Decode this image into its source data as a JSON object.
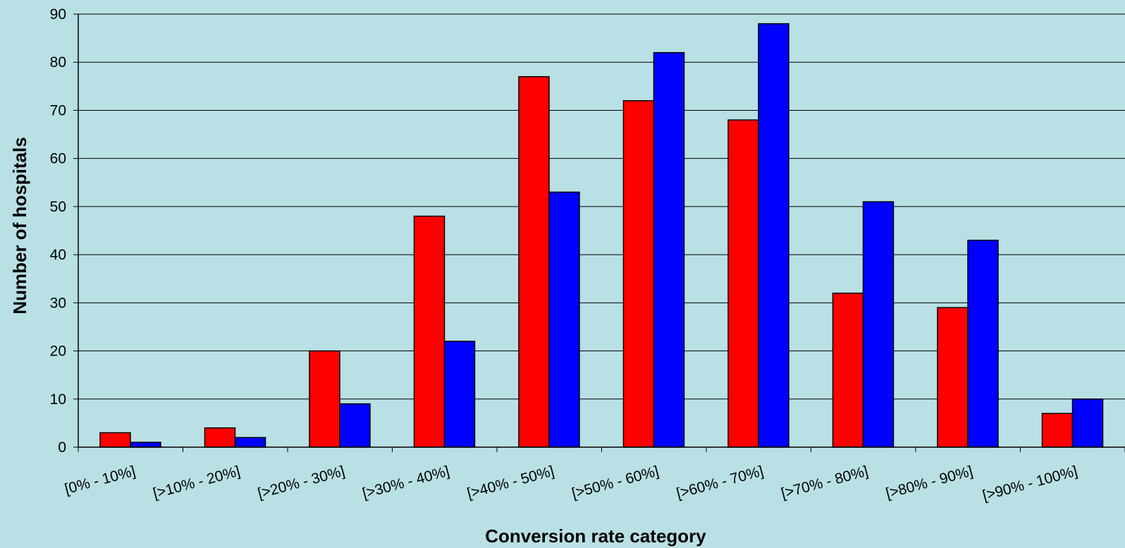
{
  "chart_data": {
    "type": "bar",
    "title": "",
    "xlabel": "Conversion rate category",
    "ylabel": "Number of hospitals",
    "ylim": [
      0,
      90
    ],
    "yticks": [
      0,
      10,
      20,
      30,
      40,
      50,
      60,
      70,
      80,
      90
    ],
    "grid": true,
    "legend": "none",
    "categories": [
      "[0% - 10%]",
      "[>10% - 20%]",
      "[>20% - 30%]",
      "[>30% - 40%]",
      "[>40% - 50%]",
      "[>50% - 60%]",
      "[>60% - 70%]",
      "[>70% - 80%]",
      "[>80% - 90%]",
      "[>90% - 100%]"
    ],
    "series": [
      {
        "values": [
          3,
          4,
          20,
          48,
          77,
          72,
          68,
          32,
          29,
          7
        ],
        "color": "#ff0000"
      },
      {
        "values": [
          1,
          2,
          9,
          22,
          53,
          82,
          88,
          51,
          43,
          10
        ],
        "color": "#0000ff"
      }
    ]
  }
}
